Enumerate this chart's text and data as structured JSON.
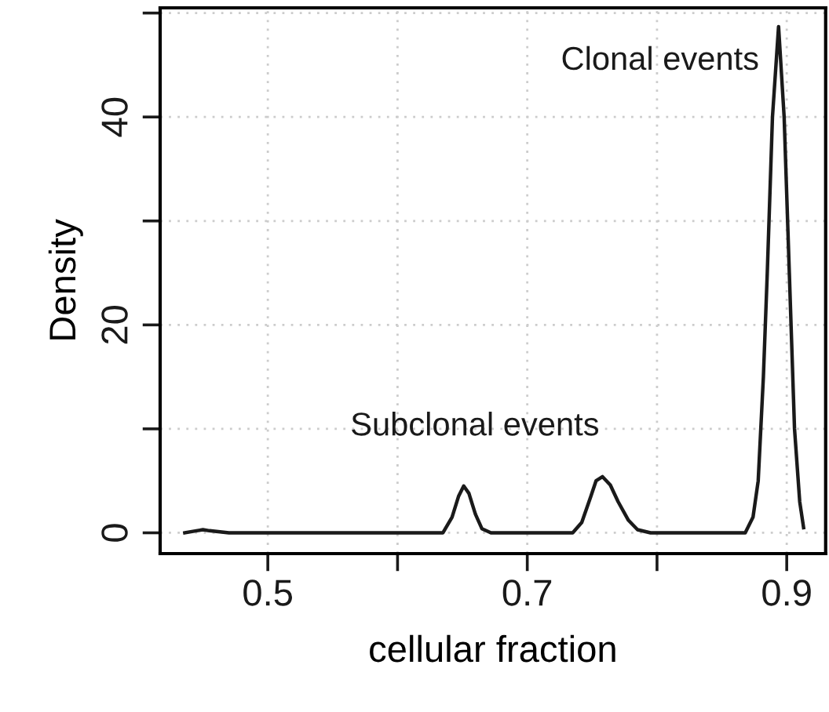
{
  "chart_data": {
    "type": "line",
    "xlabel": "cellular fraction",
    "ylabel": "Density",
    "annotations": [
      "Clonal events",
      "Subclonal events"
    ],
    "series": [
      {
        "color": "#1a1a1a",
        "x": [
          0.436,
          0.445,
          0.45,
          0.455,
          0.47,
          0.55,
          0.635,
          0.642,
          0.647,
          0.651,
          0.655,
          0.66,
          0.665,
          0.672,
          0.735,
          0.742,
          0.749,
          0.753,
          0.758,
          0.764,
          0.77,
          0.778,
          0.785,
          0.795,
          0.868,
          0.874,
          0.878,
          0.882,
          0.885,
          0.889,
          0.8937,
          0.898,
          0.902,
          0.906,
          0.91,
          0.913
        ],
        "values": [
          0,
          0.2,
          0.3,
          0.2,
          0,
          0,
          0,
          1.5,
          3.5,
          4.5,
          3.8,
          1.8,
          0.4,
          0,
          0,
          1,
          3.5,
          5,
          5.4,
          4.6,
          3,
          1.2,
          0.3,
          0,
          0,
          1.5,
          5,
          15,
          25,
          40,
          48.7,
          40,
          25,
          10,
          3,
          0.5
        ]
      }
    ],
    "xlim": [
      0.417,
      0.93
    ],
    "ylim": [
      -2,
      50.5
    ],
    "xticks": [
      0.5,
      {
        "value": 0.6,
        "label": null
      },
      0.7,
      {
        "value": 0.8,
        "label": null
      },
      0.9
    ],
    "yticks": [
      0,
      {
        "value": 10,
        "label": null
      },
      20,
      {
        "value": 30,
        "label": null
      },
      40,
      {
        "value": 50,
        "label": null
      }
    ],
    "grid": true,
    "marker": "none",
    "line_style": "solid",
    "legend": false
  }
}
